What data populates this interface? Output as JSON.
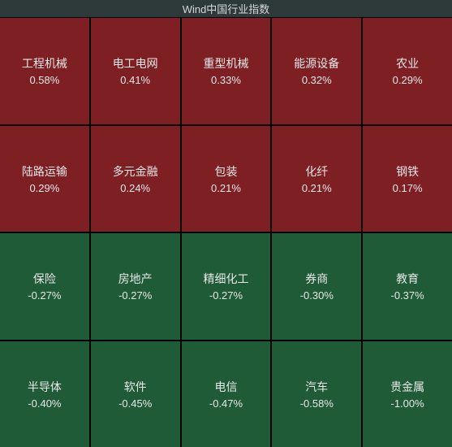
{
  "title": "Wind中国行业指数",
  "title_bg": "#2e3a3a",
  "title_color": "#d8d8d8",
  "body_bg": "#000000",
  "grid_gap_color": "#000000",
  "columns": 5,
  "rows": 4,
  "label_fontsize": 14,
  "value_fontsize": 13,
  "text_color": "#e8e8e8",
  "pos_color": "#7d1f23",
  "neg_color": "#1f5b36",
  "cells": [
    {
      "name": "工程机械",
      "value": "0.58%",
      "bg": "#7d1f23"
    },
    {
      "name": "电工电网",
      "value": "0.41%",
      "bg": "#7d1f23"
    },
    {
      "name": "重型机械",
      "value": "0.33%",
      "bg": "#7d1f23"
    },
    {
      "name": "能源设备",
      "value": "0.32%",
      "bg": "#7d1f23"
    },
    {
      "name": "农业",
      "value": "0.29%",
      "bg": "#7d1f23"
    },
    {
      "name": "陆路运输",
      "value": "0.29%",
      "bg": "#7d1f23"
    },
    {
      "name": "多元金融",
      "value": "0.24%",
      "bg": "#7d1f23"
    },
    {
      "name": "包装",
      "value": "0.21%",
      "bg": "#7d1f23"
    },
    {
      "name": "化纤",
      "value": "0.21%",
      "bg": "#7d1f23"
    },
    {
      "name": "钢铁",
      "value": "0.17%",
      "bg": "#7d1f23"
    },
    {
      "name": "保险",
      "value": "-0.27%",
      "bg": "#1f5b36"
    },
    {
      "name": "房地产",
      "value": "-0.27%",
      "bg": "#1f5b36"
    },
    {
      "name": "精细化工",
      "value": "-0.27%",
      "bg": "#1f5b36"
    },
    {
      "name": "券商",
      "value": "-0.30%",
      "bg": "#1f5b36"
    },
    {
      "name": "教育",
      "value": "-0.37%",
      "bg": "#1f5b36"
    },
    {
      "name": "半导体",
      "value": "-0.40%",
      "bg": "#1f5b36"
    },
    {
      "name": "软件",
      "value": "-0.45%",
      "bg": "#1f5b36"
    },
    {
      "name": "电信",
      "value": "-0.47%",
      "bg": "#1f5b36"
    },
    {
      "name": "汽车",
      "value": "-0.58%",
      "bg": "#1f5b36"
    },
    {
      "name": "贵金属",
      "value": "-1.00%",
      "bg": "#1f5b36"
    }
  ]
}
